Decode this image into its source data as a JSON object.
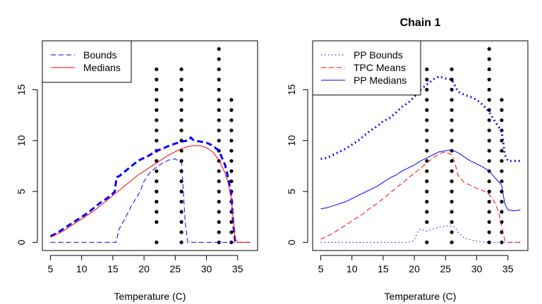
{
  "chart_data": [
    {
      "type": "line",
      "title": "",
      "xlabel": "Temperature (C)",
      "ylabel": "",
      "xlim": [
        3.7,
        38.2
      ],
      "ylim": [
        -0.8,
        19.8
      ],
      "xticks": [
        5,
        10,
        15,
        20,
        25,
        30,
        35
      ],
      "yticks": [
        0,
        5,
        10,
        15
      ],
      "legend_position": "top-left",
      "legend": [
        {
          "label": "Bounds",
          "color": "#0000ff",
          "dash": "dashed"
        },
        {
          "label": "Medians",
          "color": "#ff0000",
          "dash": "solid"
        }
      ],
      "series": [
        {
          "name": "Bounds",
          "color": "#0000ff",
          "dash": "dashed",
          "width": 3,
          "x": [
            5,
            6,
            7,
            8,
            9,
            10,
            11,
            12,
            13,
            14,
            15,
            15.3,
            15.6,
            16,
            17,
            18,
            19,
            20,
            21,
            22,
            23,
            24,
            25,
            26,
            27,
            27.5,
            28,
            29,
            30,
            31,
            32,
            33,
            33.5,
            34,
            34.3,
            34.6
          ],
          "y": [
            0.6,
            0.9,
            1.3,
            1.7,
            2.1,
            2.5,
            2.9,
            3.4,
            3.9,
            4.3,
            4.8,
            5.0,
            6.4,
            6.5,
            7.0,
            7.5,
            8.0,
            8.3,
            8.6,
            9.0,
            9.2,
            9.5,
            9.7,
            9.9,
            10.0,
            10.3,
            10.0,
            9.9,
            9.8,
            9.5,
            9.0,
            7.6,
            6.3,
            4.6,
            1.8,
            0.1
          ]
        },
        {
          "name": "",
          "color": "#0000ff",
          "dash": "dashed",
          "width": 1,
          "x": [
            5,
            10,
            15,
            15.5,
            16,
            17,
            18,
            19,
            19.5,
            20,
            21,
            22,
            23,
            24,
            25,
            25.5,
            26,
            26.3,
            26.6,
            27,
            30,
            34,
            35,
            37
          ],
          "y": [
            0,
            0,
            0,
            0,
            1.3,
            2.4,
            3.6,
            4.6,
            5.2,
            6.0,
            6.9,
            7.4,
            7.8,
            8.1,
            8.2,
            8.0,
            7.8,
            5.0,
            2.0,
            0,
            0,
            0,
            0,
            0
          ]
        },
        {
          "name": "Medians",
          "color": "#ff0000",
          "dash": "solid",
          "width": 1,
          "x": [
            5,
            6,
            7,
            8,
            9,
            10,
            11,
            12,
            13,
            14,
            15,
            16,
            17,
            18,
            19,
            20,
            21,
            22,
            23,
            24,
            25,
            26,
            27,
            28,
            29,
            30,
            31,
            32,
            33,
            33.5,
            34,
            34.3,
            34.6,
            35,
            37
          ],
          "y": [
            0.5,
            0.8,
            1.1,
            1.5,
            1.9,
            2.3,
            2.7,
            3.1,
            3.6,
            4.1,
            4.6,
            5.1,
            5.6,
            6.1,
            6.6,
            7.0,
            7.4,
            7.8,
            8.2,
            8.6,
            8.9,
            9.2,
            9.4,
            9.5,
            9.5,
            9.3,
            8.9,
            8.1,
            6.8,
            5.8,
            4.2,
            2.2,
            0.3,
            0,
            0
          ]
        }
      ],
      "scatter": {
        "color": "#000000",
        "x": [
          22,
          22,
          22,
          22,
          22,
          22,
          22,
          22,
          22,
          22,
          22,
          22,
          22,
          22,
          22,
          22,
          22,
          26,
          26,
          26,
          26,
          26,
          26,
          26,
          26,
          26,
          26,
          26,
          26,
          26,
          26,
          26,
          26,
          26,
          26,
          32,
          32,
          32,
          32,
          32,
          32,
          32,
          32,
          32,
          32,
          32,
          32,
          32,
          32,
          32,
          32,
          32,
          32,
          32,
          32,
          34,
          34,
          34,
          34,
          34,
          34,
          34,
          34,
          34,
          34,
          34,
          34,
          34,
          34,
          34
        ],
        "y": [
          0,
          2,
          3,
          4,
          5,
          6,
          7,
          8,
          9,
          10,
          11,
          12,
          13,
          14,
          15,
          16,
          17,
          0,
          1,
          2,
          3,
          4,
          5,
          6,
          7,
          8,
          9,
          10,
          11,
          12,
          13,
          14,
          15,
          16,
          17,
          0,
          1,
          2,
          3,
          4,
          5,
          6,
          7,
          8,
          9,
          10,
          11,
          12,
          13,
          14,
          15,
          16,
          17,
          18,
          19,
          0,
          1,
          2,
          3,
          4,
          5,
          6,
          7,
          8,
          9,
          10,
          11,
          12,
          13,
          14
        ]
      }
    },
    {
      "type": "line",
      "title": "Chain 1",
      "xlabel": "Temperature (C)",
      "ylabel": "",
      "xlim": [
        3.7,
        38.2
      ],
      "ylim": [
        -0.8,
        19.8
      ],
      "xticks": [
        5,
        10,
        15,
        20,
        25,
        30,
        35
      ],
      "yticks": [
        0,
        5,
        10,
        15
      ],
      "legend_position": "top-left",
      "legend": [
        {
          "label": "PP Bounds",
          "color": "#0000ff",
          "dash": "dotted"
        },
        {
          "label": "TPC Means",
          "color": "#ff0000",
          "dash": "dashed"
        },
        {
          "label": "PP Medians",
          "color": "#0000ff",
          "dash": "solid"
        }
      ],
      "series": [
        {
          "name": "PP Bounds",
          "color": "#0000ff",
          "dash": "dotted",
          "width": 3,
          "x": [
            5,
            6,
            7,
            8,
            9,
            10,
            11,
            12,
            13,
            14,
            15,
            16,
            17,
            18,
            19,
            20,
            21,
            22,
            23,
            24,
            25,
            26,
            27,
            28,
            29,
            30,
            31,
            32,
            33,
            34,
            34.5,
            35,
            36,
            37
          ],
          "y": [
            8.2,
            8.3,
            8.6,
            8.9,
            9.2,
            9.6,
            10.0,
            10.5,
            11.0,
            11.4,
            11.9,
            12.2,
            12.7,
            13.3,
            13.7,
            14.3,
            15.0,
            15.5,
            16.0,
            16.3,
            16.1,
            16.0,
            14.8,
            14.5,
            14.3,
            14.0,
            13.5,
            12.8,
            11.8,
            10.9,
            8.6,
            8.0,
            8.0,
            8.0
          ]
        },
        {
          "name": "",
          "color": "#0000ff",
          "dash": "dotted",
          "width": 1,
          "x": [
            5,
            10,
            15,
            19,
            20,
            20.5,
            21,
            22,
            23,
            24,
            25,
            26,
            26.5,
            27,
            28,
            30,
            32,
            34,
            35,
            37
          ],
          "y": [
            0,
            0,
            0,
            0,
            0.2,
            1.0,
            1.3,
            1.1,
            1.3,
            1.5,
            1.6,
            1.6,
            1.5,
            1.0,
            0.4,
            0.1,
            0,
            0,
            0,
            0
          ]
        },
        {
          "name": "TPC Means",
          "color": "#ff0000",
          "dash": "dashed",
          "width": 1,
          "x": [
            5,
            6,
            7,
            8,
            9,
            10,
            11,
            12,
            13,
            14,
            15,
            16,
            17,
            18,
            19,
            20,
            21,
            22,
            23,
            24,
            25,
            26,
            26.5,
            27,
            28,
            29,
            30,
            31,
            32,
            33,
            33.5,
            34,
            34.5,
            35,
            37
          ],
          "y": [
            0.3,
            0.6,
            0.9,
            1.3,
            1.7,
            2.1,
            2.5,
            2.9,
            3.4,
            3.8,
            4.3,
            4.8,
            5.3,
            5.8,
            6.3,
            6.8,
            7.3,
            7.8,
            8.3,
            8.7,
            8.9,
            8.6,
            7.8,
            6.6,
            5.9,
            5.6,
            5.3,
            5.1,
            4.7,
            3.8,
            3.0,
            1.6,
            0.2,
            0,
            0
          ]
        },
        {
          "name": "PP Medians",
          "color": "#0000ff",
          "dash": "solid",
          "width": 1,
          "x": [
            5,
            6,
            7,
            8,
            9,
            10,
            11,
            12,
            13,
            14,
            15,
            16,
            17,
            18,
            19,
            20,
            21,
            22,
            23,
            24,
            25,
            26,
            27,
            28,
            29,
            30,
            31,
            32,
            33,
            34,
            34.5,
            35,
            36,
            37
          ],
          "y": [
            3.3,
            3.4,
            3.6,
            3.8,
            4.0,
            4.3,
            4.6,
            4.9,
            5.2,
            5.5,
            5.9,
            6.3,
            6.6,
            7.0,
            7.3,
            7.6,
            8.0,
            8.3,
            8.6,
            8.9,
            9.0,
            9.1,
            8.8,
            8.4,
            8.0,
            7.7,
            7.4,
            7.0,
            6.3,
            5.6,
            3.8,
            3.2,
            3.1,
            3.2
          ]
        }
      ],
      "scatter": {
        "color": "#000000",
        "x": [
          22,
          22,
          22,
          22,
          22,
          22,
          22,
          22,
          22,
          22,
          22,
          22,
          22,
          22,
          22,
          22,
          22,
          26,
          26,
          26,
          26,
          26,
          26,
          26,
          26,
          26,
          26,
          26,
          26,
          26,
          26,
          26,
          26,
          26,
          26,
          32,
          32,
          32,
          32,
          32,
          32,
          32,
          32,
          32,
          32,
          32,
          32,
          32,
          32,
          32,
          32,
          32,
          32,
          32,
          32,
          34,
          34,
          34,
          34,
          34,
          34,
          34,
          34,
          34,
          34,
          34,
          34,
          34,
          34,
          34
        ],
        "y": [
          0,
          2,
          3,
          4,
          5,
          6,
          7,
          8,
          9,
          10,
          11,
          12,
          13,
          14,
          15,
          16,
          17,
          0,
          1,
          2,
          3,
          4,
          5,
          6,
          7,
          8,
          9,
          10,
          11,
          12,
          13,
          14,
          15,
          16,
          17,
          0,
          1,
          2,
          3,
          4,
          5,
          6,
          7,
          8,
          9,
          10,
          11,
          12,
          13,
          14,
          15,
          16,
          17,
          18,
          19,
          0,
          1,
          2,
          3,
          4,
          5,
          6,
          7,
          8,
          9,
          10,
          11,
          12,
          13,
          14
        ]
      }
    }
  ]
}
